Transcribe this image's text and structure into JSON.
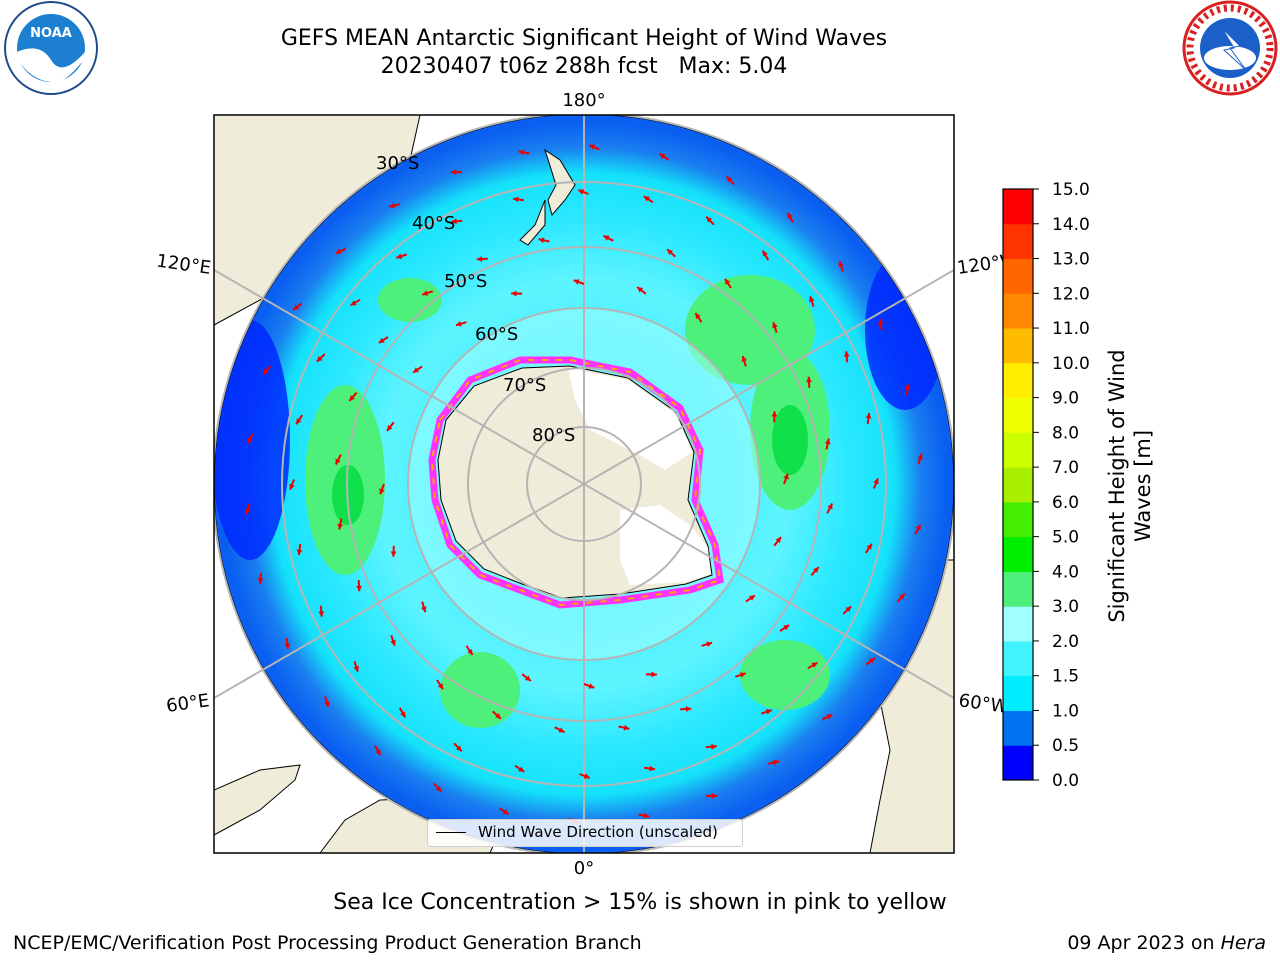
{
  "title": {
    "line1": "GEFS MEAN Antarctic Significant Height of Wind Waves",
    "line2": "20230407 t06z 288h fcst   Max: 5.04"
  },
  "logos": {
    "left": {
      "icon": "noaa-logo-icon",
      "text": "NOAA"
    },
    "right": {
      "icon": "national-weather-service-logo-icon",
      "text": "NATIONAL WEATHER SERVICE"
    }
  },
  "map": {
    "projection": "south-polar-stereographic",
    "longitude_labels": {
      "top": "180°",
      "bottom": "0°",
      "left_upper": "120°E",
      "left_lower": "60°E",
      "right_upper": "120°W",
      "right_lower": "60°W"
    },
    "latitude_labels": [
      "30°S",
      "40°S",
      "50°S",
      "60°S",
      "70°S",
      "80°S"
    ],
    "colors": {
      "land": "#efedd9",
      "ice_shelf": "#ffffff",
      "sea_ice_edge": [
        "#ff33ff",
        "#ffa500",
        "#ffff66"
      ],
      "graticule": "#b5b5b5",
      "arrow": "#ee0000"
    },
    "legend": {
      "label": "Wind Wave Direction (unscaled)"
    }
  },
  "colorbar": {
    "label": "Significant Height of Wind Waves [m]",
    "label_lines": [
      "Significant Height of Wind",
      "Waves [m]"
    ],
    "ticks": [
      "0.0",
      "0.5",
      "1.0",
      "1.5",
      "2.0",
      "3.0",
      "4.0",
      "5.0",
      "6.0",
      "7.0",
      "8.0",
      "9.0",
      "10.0",
      "11.0",
      "12.0",
      "13.0",
      "14.0",
      "15.0"
    ],
    "colors": [
      "#0000ff",
      "#0073f0",
      "#00ecff",
      "#40f4ff",
      "#a0ffff",
      "#4cf07a",
      "#00ee00",
      "#44ee00",
      "#a8ee00",
      "#ccff00",
      "#eeff00",
      "#ffee00",
      "#ffbb00",
      "#ff8800",
      "#ff6600",
      "#ff3300",
      "#ff0000"
    ]
  },
  "notes": {
    "sea_ice": "Sea Ice Concentration > 15% is shown in pink to yellow"
  },
  "footer": {
    "left": "NCEP/EMC/Verification Post Processing Product Generation Branch",
    "date": "09 Apr 2023 on ",
    "host": "Hera"
  }
}
